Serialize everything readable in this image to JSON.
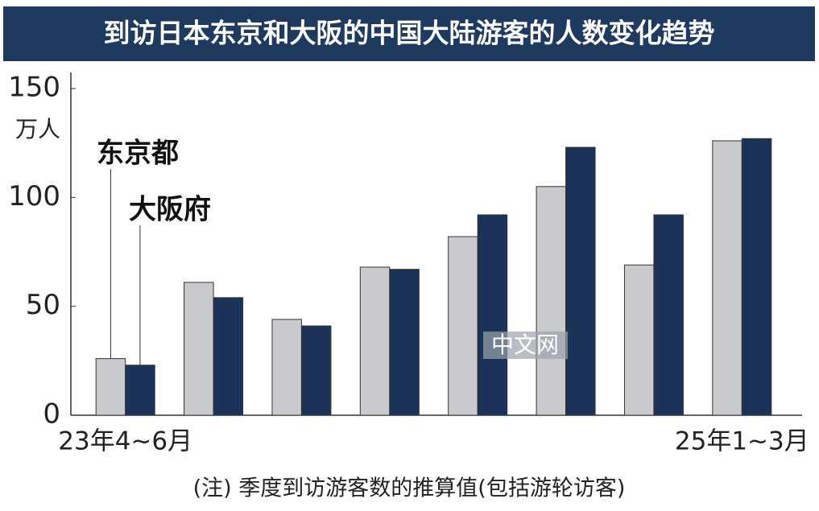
{
  "chart_data": {
    "type": "bar",
    "title": "到访日本东京和大阪的中国大陆游客的人数变化趋势",
    "y_unit": "万人",
    "categories": [
      "23年4~6月",
      null,
      null,
      null,
      null,
      null,
      null,
      "25年1~3月"
    ],
    "series": [
      {
        "name": "东京都",
        "color": "#c8cacd",
        "values": [
          26,
          61,
          44,
          68,
          82,
          105,
          69,
          126
        ]
      },
      {
        "name": "大阪府",
        "color": "#1b3358",
        "values": [
          23,
          54,
          41,
          67,
          92,
          123,
          92,
          127
        ]
      }
    ],
    "ylim": [
      0,
      150
    ],
    "yticks": [
      0,
      50,
      100,
      150
    ],
    "note": "(注) 季度到访游客数的推算值(包括游轮访客)",
    "watermark": "中文网"
  }
}
